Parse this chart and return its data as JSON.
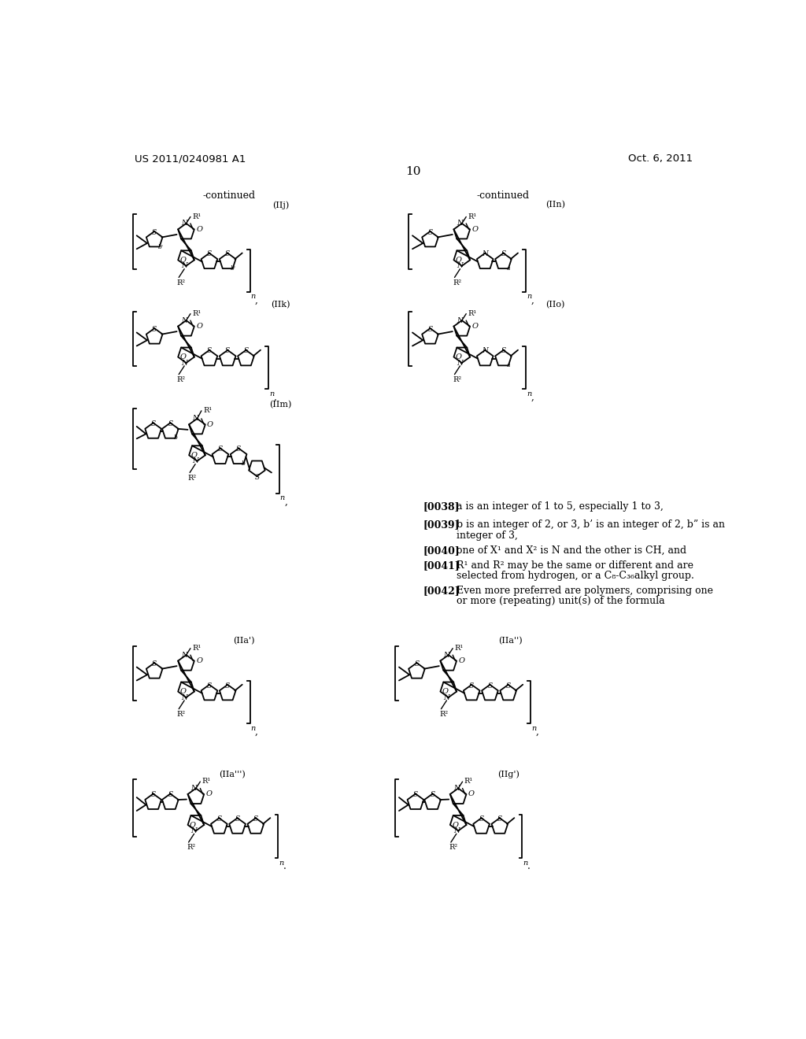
{
  "bg_color": "#ffffff",
  "header_left": "US 2011/0240981 A1",
  "header_right": "Oct. 6, 2011",
  "page_number": "10"
}
